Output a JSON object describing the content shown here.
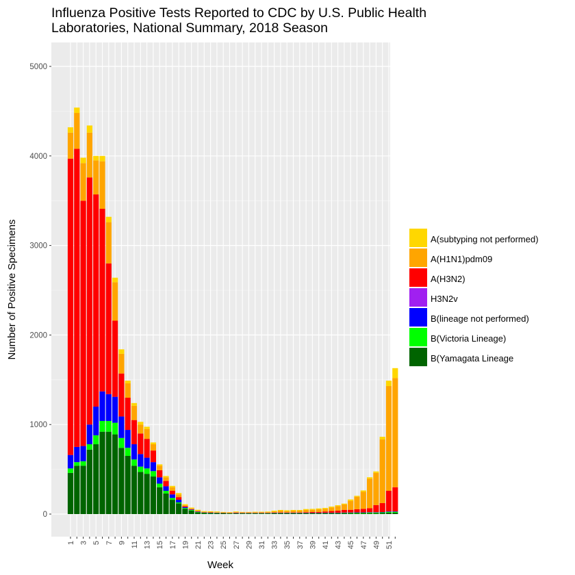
{
  "chart_data": {
    "type": "bar",
    "stacked": true,
    "title_line1": "Influenza Positive Tests Reported to CDC by U.S. Public Health",
    "title_line2": "Laboratories, National Summary, 2018 Season",
    "xlabel": "Week",
    "ylabel": "Number of Positive Specimens",
    "ylim": [
      0,
      5200
    ],
    "yticks": [
      0,
      1000,
      2000,
      3000,
      4000,
      5000
    ],
    "xtick_labels": [
      "1",
      "3",
      "5",
      "7",
      "9",
      "11",
      "13",
      "15",
      "17",
      "19",
      "21",
      "23",
      "25",
      "27",
      "29",
      "31",
      "33",
      "35",
      "37",
      "39",
      "41",
      "43",
      "45",
      "47",
      "49",
      "51"
    ],
    "legend_position": "right",
    "grid": true,
    "background": "#EBEBEB",
    "weeks": [
      1,
      2,
      3,
      4,
      5,
      6,
      7,
      8,
      9,
      10,
      11,
      12,
      13,
      14,
      15,
      16,
      17,
      18,
      19,
      20,
      21,
      22,
      23,
      24,
      25,
      26,
      27,
      28,
      29,
      30,
      31,
      32,
      33,
      34,
      35,
      36,
      37,
      38,
      39,
      40,
      41,
      42,
      43,
      44,
      45,
      46,
      47,
      48,
      49,
      50,
      51,
      52
    ],
    "series": [
      {
        "name": "B(Yamagata Lineage",
        "color": "#006400",
        "values": [
          460,
          540,
          540,
          720,
          780,
          920,
          920,
          890,
          740,
          650,
          540,
          470,
          450,
          420,
          300,
          230,
          160,
          120,
          60,
          40,
          20,
          12,
          10,
          8,
          8,
          6,
          6,
          6,
          6,
          6,
          6,
          6,
          8,
          8,
          8,
          8,
          8,
          8,
          8,
          8,
          8,
          8,
          8,
          10,
          10,
          10,
          10,
          10,
          10,
          12,
          15,
          15
        ]
      },
      {
        "name": "B(Victoria Lineage)",
        "color": "#00FF00",
        "values": [
          50,
          40,
          50,
          60,
          100,
          120,
          120,
          130,
          110,
          90,
          70,
          60,
          60,
          60,
          40,
          30,
          20,
          10,
          8,
          6,
          5,
          4,
          4,
          4,
          3,
          3,
          3,
          3,
          3,
          3,
          3,
          3,
          3,
          3,
          3,
          3,
          3,
          3,
          3,
          3,
          4,
          4,
          4,
          5,
          5,
          6,
          6,
          8,
          8,
          8,
          10,
          10
        ]
      },
      {
        "name": "B(lineage not performed)",
        "color": "#0000FF",
        "values": [
          150,
          170,
          170,
          220,
          320,
          330,
          300,
          290,
          240,
          200,
          170,
          140,
          120,
          100,
          70,
          50,
          40,
          30,
          10,
          5,
          3,
          2,
          2,
          2,
          2,
          2,
          2,
          2,
          2,
          2,
          2,
          2,
          2,
          2,
          2,
          2,
          2,
          2,
          2,
          2,
          2,
          2,
          2,
          2,
          3,
          3,
          3,
          3,
          3,
          3,
          5,
          5
        ]
      },
      {
        "name": "H3N2v",
        "color": "#A020F0",
        "values": [
          0,
          0,
          0,
          0,
          0,
          0,
          0,
          0,
          0,
          0,
          0,
          0,
          0,
          0,
          0,
          0,
          0,
          0,
          0,
          0,
          0,
          0,
          0,
          0,
          0,
          0,
          0,
          0,
          0,
          0,
          0,
          0,
          0,
          0,
          0,
          0,
          0,
          0,
          0,
          0,
          0,
          0,
          0,
          0,
          0,
          0,
          0,
          0,
          0,
          0,
          0,
          0
        ]
      },
      {
        "name": "A(H3N2)",
        "color": "#FF0000",
        "values": [
          3310,
          3330,
          2740,
          2760,
          2370,
          2040,
          1460,
          850,
          480,
          360,
          270,
          230,
          210,
          130,
          80,
          60,
          40,
          30,
          10,
          5,
          5,
          3,
          3,
          3,
          2,
          2,
          5,
          3,
          3,
          3,
          3,
          3,
          5,
          5,
          5,
          5,
          5,
          8,
          10,
          10,
          15,
          20,
          25,
          30,
          30,
          35,
          40,
          45,
          80,
          100,
          230,
          270
        ]
      },
      {
        "name": "A(H1N1)pdm09",
        "color": "#FFA500",
        "values": [
          290,
          400,
          420,
          500,
          380,
          530,
          460,
          430,
          220,
          160,
          160,
          100,
          110,
          70,
          50,
          40,
          40,
          30,
          10,
          7,
          5,
          4,
          4,
          4,
          3,
          3,
          5,
          4,
          4,
          4,
          6,
          6,
          10,
          20,
          15,
          20,
          20,
          25,
          25,
          30,
          30,
          40,
          50,
          60,
          100,
          140,
          190,
          330,
          360,
          710,
          1170,
          1220
        ]
      },
      {
        "name": "A(subtyping not performed)",
        "color": "#FFD700",
        "values": [
          60,
          60,
          60,
          80,
          50,
          60,
          60,
          50,
          50,
          30,
          30,
          30,
          25,
          20,
          15,
          15,
          15,
          15,
          12,
          10,
          10,
          8,
          8,
          8,
          6,
          6,
          8,
          6,
          6,
          8,
          6,
          8,
          10,
          8,
          10,
          8,
          8,
          10,
          10,
          10,
          10,
          10,
          10,
          10,
          15,
          10,
          15,
          15,
          15,
          30,
          60,
          110
        ]
      }
    ]
  }
}
